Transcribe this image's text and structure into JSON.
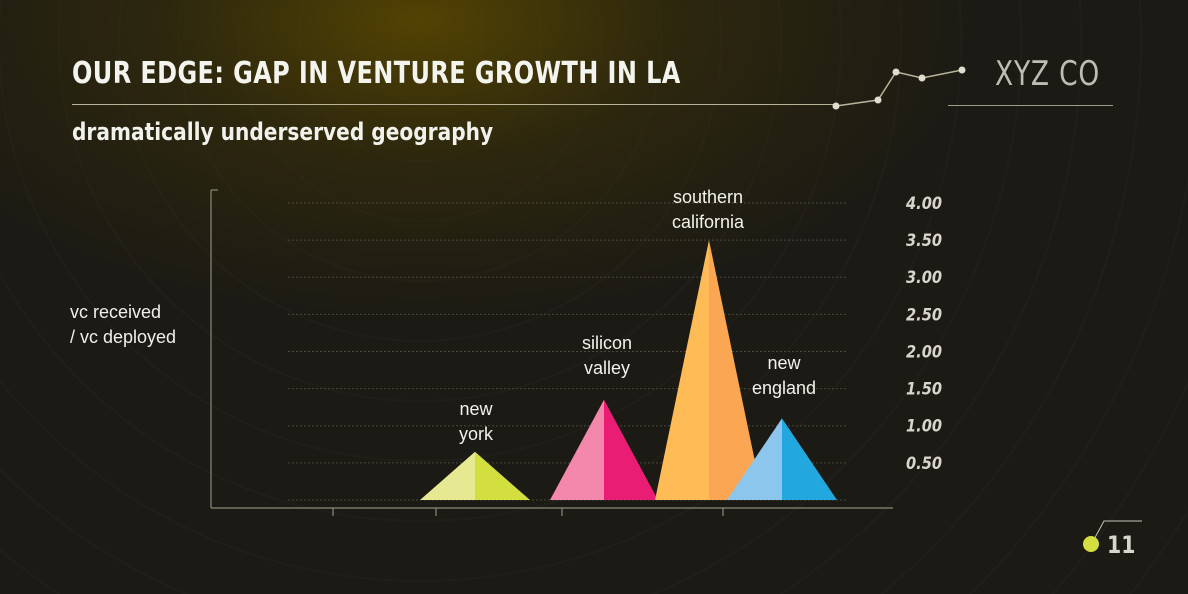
{
  "slide": {
    "title": "OUR EDGE: GAP IN VENTURE GROWTH IN LA",
    "subtitle": "dramatically underserved geography",
    "company": "XYZ CO",
    "page_number": "11",
    "accent_color": "#d3de3f"
  },
  "chart_data": {
    "type": "area",
    "title": "",
    "ylabel_lines": [
      "vc received",
      "/ vc deployed"
    ],
    "xlabel": "",
    "ylim": [
      0,
      4
    ],
    "yticks": [
      "0.50",
      "1.00",
      "1.50",
      "2.00",
      "2.50",
      "3.00",
      "3.50",
      "4.00"
    ],
    "grid": true,
    "series": [
      {
        "name_lines": [
          "new",
          "york"
        ],
        "value": 0.65,
        "colors": [
          "#e6e991",
          "#d3de3f"
        ]
      },
      {
        "name_lines": [
          "silicon",
          "valley"
        ],
        "value": 1.35,
        "colors": [
          "#f388ac",
          "#ea1d74"
        ]
      },
      {
        "name_lines": [
          "southern",
          "california"
        ],
        "value": 3.5,
        "colors": [
          "#ffbb55",
          "#fba652"
        ]
      },
      {
        "name_lines": [
          "new",
          "england"
        ],
        "value": 1.1,
        "colors": [
          "#8cc6ec",
          "#22a8df"
        ]
      }
    ]
  }
}
